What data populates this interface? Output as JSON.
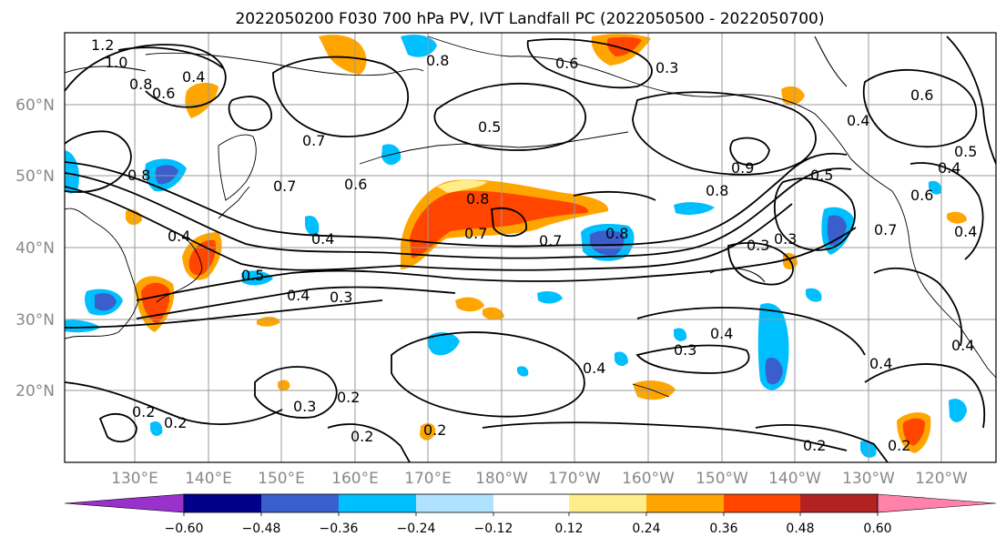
{
  "title": "2022050200 F030 700 hPa PV, IVT Landfall PC (2022050500 - 2022050700)",
  "lat_labels": [
    "60°N",
    "50°N",
    "40°N",
    "30°N",
    "20°N"
  ],
  "lon_labels": [
    "130°E",
    "140°E",
    "150°E",
    "160°E",
    "170°E",
    "180°W",
    "170°W",
    "160°W",
    "150°W",
    "140°W",
    "130°W",
    "120°W"
  ],
  "colorbar": {
    "colors": [
      "#9932cc",
      "#00008b",
      "#3a5fcd",
      "#00bfff",
      "#b0e2ff",
      "#ffffff",
      "#ffec8b",
      "#ffa500",
      "#ff4500",
      "#b22222",
      "#ff82ab"
    ],
    "ticks": [
      "−0.60",
      "−0.48",
      "−0.36",
      "−0.24",
      "−0.12",
      "0.12",
      "0.24",
      "0.36",
      "0.48",
      "0.60"
    ]
  },
  "contour_labels": [
    "1.2",
    "1.0",
    "0.8",
    "0.6",
    "0.4",
    "0.7",
    "0.5",
    "0.8",
    "0.6",
    "0.8",
    "0.7",
    "0.6",
    "0.4",
    "0.5",
    "0.4",
    "0.3",
    "0.8",
    "0.7",
    "0.8",
    "0.9",
    "0.5",
    "0.3",
    "0.4",
    "0.7",
    "0.8",
    "0.4",
    "0.3",
    "0.2",
    "0.2",
    "0.2",
    "0.3",
    "0.2",
    "0.2",
    "0.4",
    "0.3",
    "0.4",
    "0.2",
    "0.2",
    "0.4",
    "0.5",
    "0.4",
    "0.6",
    "0.7",
    "0.6",
    "0.4",
    "0.4",
    "0.3"
  ]
}
